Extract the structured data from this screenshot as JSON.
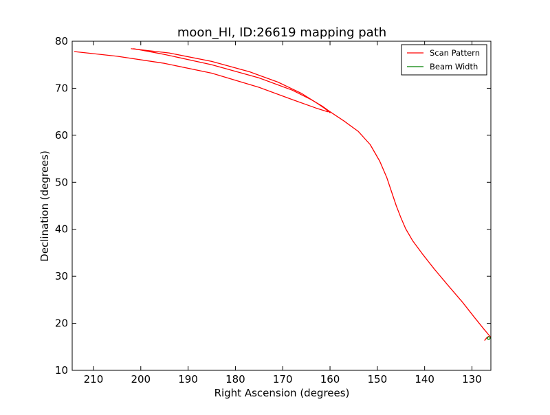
{
  "chart_data": {
    "type": "line",
    "title": "moon_HI, ID:26619 mapping path",
    "xlabel": "Right Ascension (degrees)",
    "ylabel": "Declination (degrees)",
    "xlim": [
      214.5,
      126.0
    ],
    "ylim": [
      10,
      80
    ],
    "x_inverted": true,
    "xticks": [
      210,
      200,
      190,
      180,
      170,
      160,
      150,
      140,
      130
    ],
    "yticks": [
      10,
      20,
      30,
      40,
      50,
      60,
      70,
      80
    ],
    "grid": false,
    "legend_position": "top-right",
    "series": [
      {
        "name": "Scan Pattern",
        "color": "#ff0000",
        "segments": [
          {
            "x": [
              214.0,
              205.0,
              195.0,
              185.0,
              175.0,
              168.0,
              163.0,
              160.5
            ],
            "y": [
              77.8,
              76.8,
              75.3,
              73.2,
              70.2,
              67.6,
              65.8,
              65.0
            ]
          },
          {
            "x": [
              201.5,
              195.0,
              185.0,
              175.0,
              168.0,
              164.0,
              161.5,
              160.0
            ],
            "y": [
              78.4,
              77.2,
              75.0,
              72.2,
              69.6,
              67.6,
              66.1,
              65.0
            ]
          },
          {
            "x": [
              202.0,
              194.0,
              185.0,
              177.0,
              171.0,
              166.0,
              163.0,
              161.0,
              160.0
            ],
            "y": [
              78.4,
              77.5,
              75.7,
              73.5,
              71.3,
              68.9,
              67.0,
              65.6,
              64.8
            ]
          },
          {
            "x": [
              160.0,
              157.0,
              154.0,
              151.5,
              149.5,
              148.0,
              147.0,
              146.0,
              145.0,
              144.0,
              142.5,
              140.5,
              138.0,
              135.0,
              132.0,
              129.5,
              127.5,
              126.5,
              126.0
            ],
            "y": [
              65.0,
              63.0,
              60.8,
              58.0,
              54.5,
              51.0,
              48.0,
              45.0,
              42.4,
              40.1,
              37.5,
              34.8,
              31.6,
              28.0,
              24.5,
              21.3,
              18.8,
              17.6,
              17.0
            ]
          },
          {
            "x": [
              127.3,
              126.9,
              126.5
            ],
            "y": [
              16.4,
              16.9,
              17.2
            ]
          }
        ]
      },
      {
        "name": "Beam Width",
        "color": "#008000",
        "segments": [
          {
            "x": [
              126.8,
              126.6,
              126.3,
              126.1,
              126.3,
              126.6,
              126.8
            ],
            "y": [
              16.8,
              17.1,
              17.1,
              16.9,
              16.6,
              16.6,
              16.8
            ]
          }
        ]
      }
    ]
  }
}
